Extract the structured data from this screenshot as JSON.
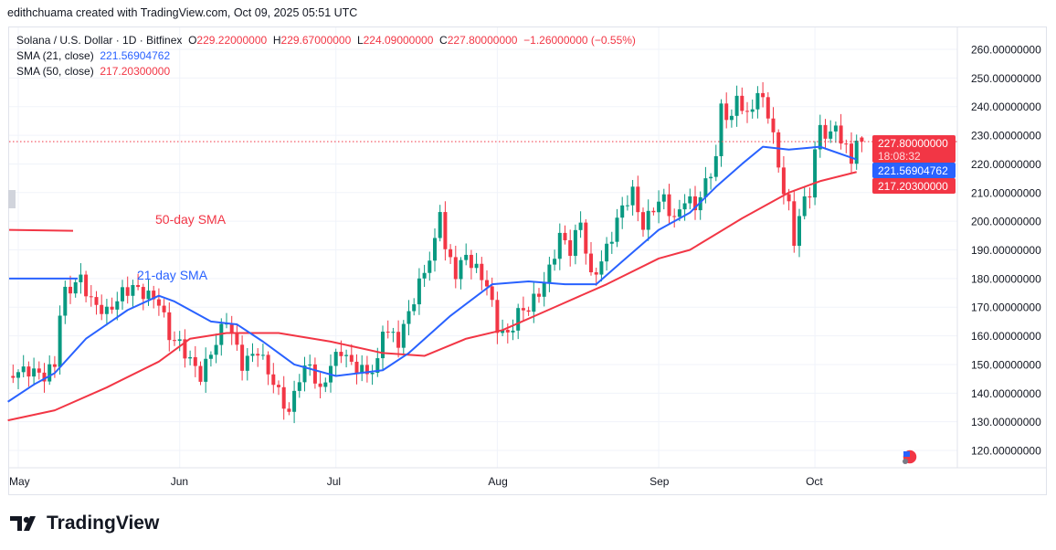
{
  "credit": "edithchuama created with TradingView.com, Oct 09, 2025 05:51 UTC",
  "legend": {
    "symbol": "Solana / U.S. Dollar · 1D · Bitfinex",
    "o_label": "O",
    "o": "229.22000000",
    "h_label": "H",
    "h": "229.67000000",
    "l_label": "L",
    "l": "224.09000000",
    "c_label": "C",
    "c": "227.80000000",
    "change": "−1.26000000 (−0.55%)",
    "sma21_label": "SMA (21, close)",
    "sma21": "221.56904762",
    "sma50_label": "SMA (50, close)",
    "sma50": "217.20300000"
  },
  "annotations": {
    "sma50": "50-day SMA",
    "sma21": "21-day SMA"
  },
  "price_badges": {
    "last": "227.80000000",
    "countdown": "18:08:32",
    "sma21": "221.56904762",
    "sma50": "217.20300000"
  },
  "logo_text": "TradingView",
  "colors": {
    "up": "#089981",
    "down": "#f23645",
    "sma21": "#2962ff",
    "sma50": "#f23645"
  },
  "chart_data": {
    "type": "candlestick",
    "y_ticks": [
      "260.00000000",
      "250.00000000",
      "240.00000000",
      "230.00000000",
      "220.00000000",
      "210.00000000",
      "200.00000000",
      "190.00000000",
      "180.00000000",
      "170.00000000",
      "160.00000000",
      "150.00000000",
      "140.00000000",
      "130.00000000",
      "120.00000000"
    ],
    "y_tick_values": [
      260,
      250,
      240,
      230,
      220,
      210,
      200,
      190,
      180,
      170,
      160,
      150,
      140,
      130,
      120
    ],
    "ylim": [
      120,
      260
    ],
    "x_ticks": [
      {
        "label": "May",
        "day": 0
      },
      {
        "label": "Jun",
        "day": 31
      },
      {
        "label": "Jul",
        "day": 61
      },
      {
        "label": "Aug",
        "day": 92
      },
      {
        "label": "Sep",
        "day": 123
      },
      {
        "label": "Oct",
        "day": 153
      }
    ],
    "day_range": [
      -1,
      162
    ],
    "close_keypoints": [
      [
        -1,
        147
      ],
      [
        2,
        148
      ],
      [
        5,
        146
      ],
      [
        7,
        150
      ],
      [
        8,
        168
      ],
      [
        9,
        175
      ],
      [
        12,
        180
      ],
      [
        14,
        172
      ],
      [
        17,
        168
      ],
      [
        20,
        175
      ],
      [
        22,
        177
      ],
      [
        25,
        174
      ],
      [
        27,
        172
      ],
      [
        29,
        160
      ],
      [
        31,
        157
      ],
      [
        35,
        146
      ],
      [
        38,
        158
      ],
      [
        40,
        166
      ],
      [
        43,
        150
      ],
      [
        46,
        155
      ],
      [
        50,
        140
      ],
      [
        52,
        133
      ],
      [
        54,
        146
      ],
      [
        56,
        150
      ],
      [
        58,
        140
      ],
      [
        60,
        150
      ],
      [
        62,
        155
      ],
      [
        64,
        150
      ],
      [
        67,
        147
      ],
      [
        69,
        150
      ],
      [
        70,
        163
      ],
      [
        73,
        158
      ],
      [
        75,
        168
      ],
      [
        77,
        178
      ],
      [
        80,
        192
      ],
      [
        81,
        205
      ],
      [
        82,
        190
      ],
      [
        84,
        182
      ],
      [
        86,
        188
      ],
      [
        88,
        183
      ],
      [
        90,
        178
      ],
      [
        92,
        163
      ],
      [
        94,
        160
      ],
      [
        96,
        168
      ],
      [
        98,
        170
      ],
      [
        100,
        175
      ],
      [
        102,
        183
      ],
      [
        104,
        195
      ],
      [
        106,
        190
      ],
      [
        108,
        200
      ],
      [
        110,
        180
      ],
      [
        112,
        186
      ],
      [
        114,
        195
      ],
      [
        116,
        205
      ],
      [
        118,
        210
      ],
      [
        120,
        198
      ],
      [
        122,
        205
      ],
      [
        124,
        208
      ],
      [
        126,
        200
      ],
      [
        128,
        208
      ],
      [
        130,
        205
      ],
      [
        132,
        213
      ],
      [
        134,
        222
      ],
      [
        135,
        240
      ],
      [
        137,
        235
      ],
      [
        138,
        244
      ],
      [
        140,
        236
      ],
      [
        142,
        245
      ],
      [
        144,
        238
      ],
      [
        145,
        230
      ],
      [
        146,
        218
      ],
      [
        148,
        205
      ],
      [
        149,
        192
      ],
      [
        150,
        203
      ],
      [
        152,
        210
      ],
      [
        153,
        225
      ],
      [
        154,
        232
      ],
      [
        156,
        230
      ],
      [
        157,
        233
      ],
      [
        158,
        229
      ],
      [
        160,
        221
      ],
      [
        161,
        229
      ],
      [
        162,
        227.8
      ]
    ],
    "last_candle": {
      "open": 229.22,
      "high": 229.67,
      "low": 224.09,
      "close": 227.8
    },
    "sma21": [
      [
        -2,
        137
      ],
      [
        3,
        143
      ],
      [
        7,
        147
      ],
      [
        13,
        159
      ],
      [
        21,
        169
      ],
      [
        27,
        174
      ],
      [
        30,
        172
      ],
      [
        37,
        165
      ],
      [
        42,
        164
      ],
      [
        47,
        158
      ],
      [
        53,
        150
      ],
      [
        61,
        146
      ],
      [
        70,
        148
      ],
      [
        75,
        154
      ],
      [
        83,
        167
      ],
      [
        91,
        178
      ],
      [
        98,
        179
      ],
      [
        105,
        178
      ],
      [
        111,
        178
      ],
      [
        116,
        186
      ],
      [
        123,
        197
      ],
      [
        129,
        203
      ],
      [
        134,
        212
      ],
      [
        139,
        220
      ],
      [
        143,
        226
      ],
      [
        148,
        225
      ],
      [
        154,
        226
      ],
      [
        161,
        221.57
      ]
    ],
    "sma50": [
      [
        -2,
        130.5
      ],
      [
        7,
        134
      ],
      [
        17,
        142
      ],
      [
        27,
        151
      ],
      [
        33,
        159
      ],
      [
        40,
        161
      ],
      [
        50,
        161
      ],
      [
        60,
        158
      ],
      [
        70,
        154
      ],
      [
        78,
        153
      ],
      [
        86,
        159
      ],
      [
        93,
        162
      ],
      [
        103,
        170
      ],
      [
        113,
        178
      ],
      [
        123,
        187
      ],
      [
        129,
        190
      ],
      [
        139,
        201
      ],
      [
        148,
        210
      ],
      [
        154,
        214
      ],
      [
        161,
        217.2
      ]
    ],
    "sma21_offscreen": 180,
    "sma50_offscreen": 197
  }
}
